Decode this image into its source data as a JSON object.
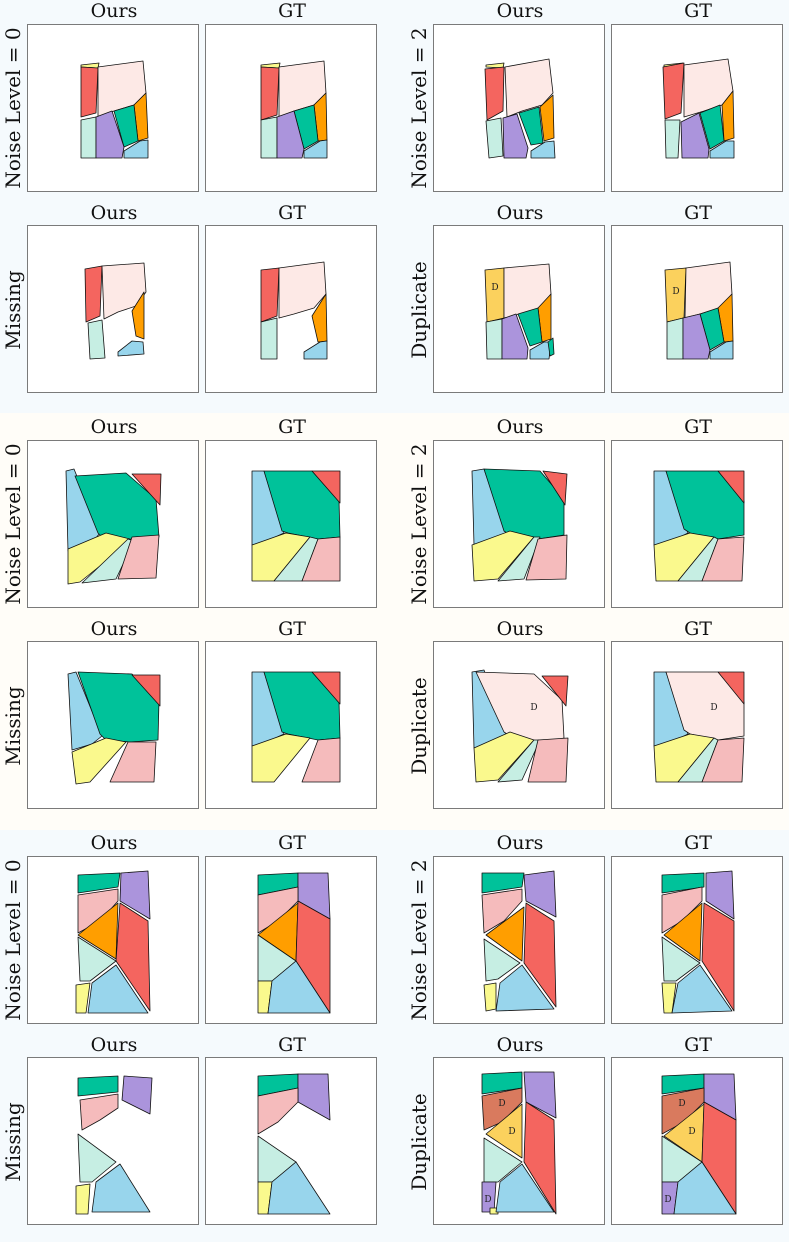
{
  "column_titles": {
    "ours": "Ours",
    "gt": "GT"
  },
  "row_labels": {
    "noise0": "Noise Level = 0",
    "noise2": "Noise Level = 2",
    "missing": "Missing",
    "duplicate": "Duplicate"
  },
  "duplicate_marker": "D",
  "palette": {
    "red": "#f4655f",
    "peach": "#fde9e6",
    "orange": "#ff9e00",
    "green": "#00c29a",
    "purple": "#ab94dc",
    "mint": "#c6eee3",
    "sky": "#98d5ec",
    "yellow": "#faf98d",
    "pink": "#f5bbbc",
    "gold": "#fbd15d",
    "brick": "#d97a5e",
    "band_blue": "#f5fafd",
    "band_cream": "#fffdf8"
  }
}
